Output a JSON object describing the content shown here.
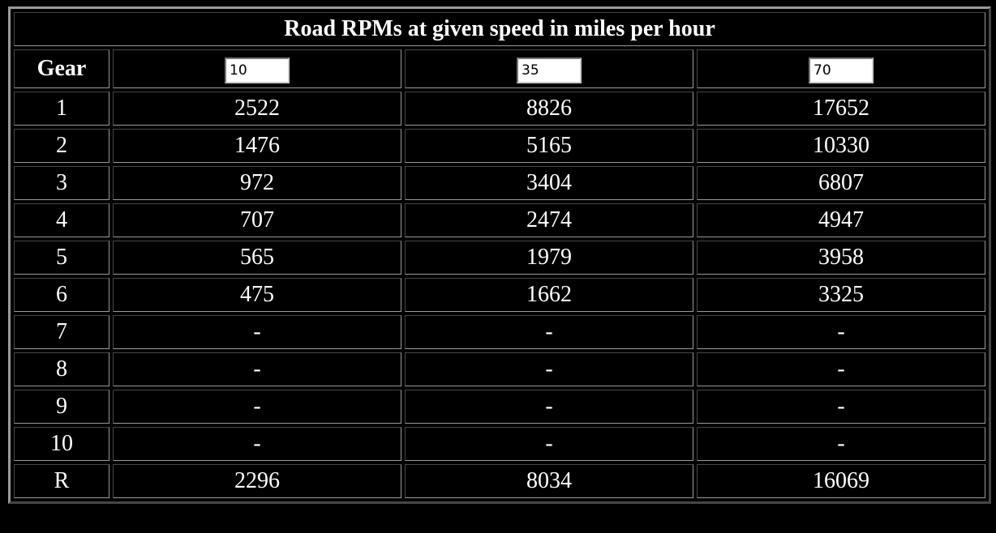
{
  "table": {
    "title": "Road RPMs at given speed in miles per hour",
    "header": [
      "Gear",
      "10",
      "35",
      "70"
    ],
    "rows": [
      [
        "1",
        "2522",
        "8826",
        "17652"
      ],
      [
        "2",
        "1476",
        "5165",
        "10330"
      ],
      [
        "3",
        "972",
        "3404",
        "6807"
      ],
      [
        "4",
        "707",
        "2474",
        "4947"
      ],
      [
        "5",
        "565",
        "1979",
        "3958"
      ],
      [
        "6",
        "475",
        "1662",
        "3325"
      ],
      [
        "7",
        "-",
        "-",
        "-"
      ],
      [
        "8",
        "-",
        "-",
        "-"
      ],
      [
        "9",
        "-",
        "-",
        "-"
      ],
      [
        "10",
        "-",
        "-",
        "-"
      ],
      [
        "R",
        "2296",
        "8034",
        "16069"
      ]
    ]
  }
}
